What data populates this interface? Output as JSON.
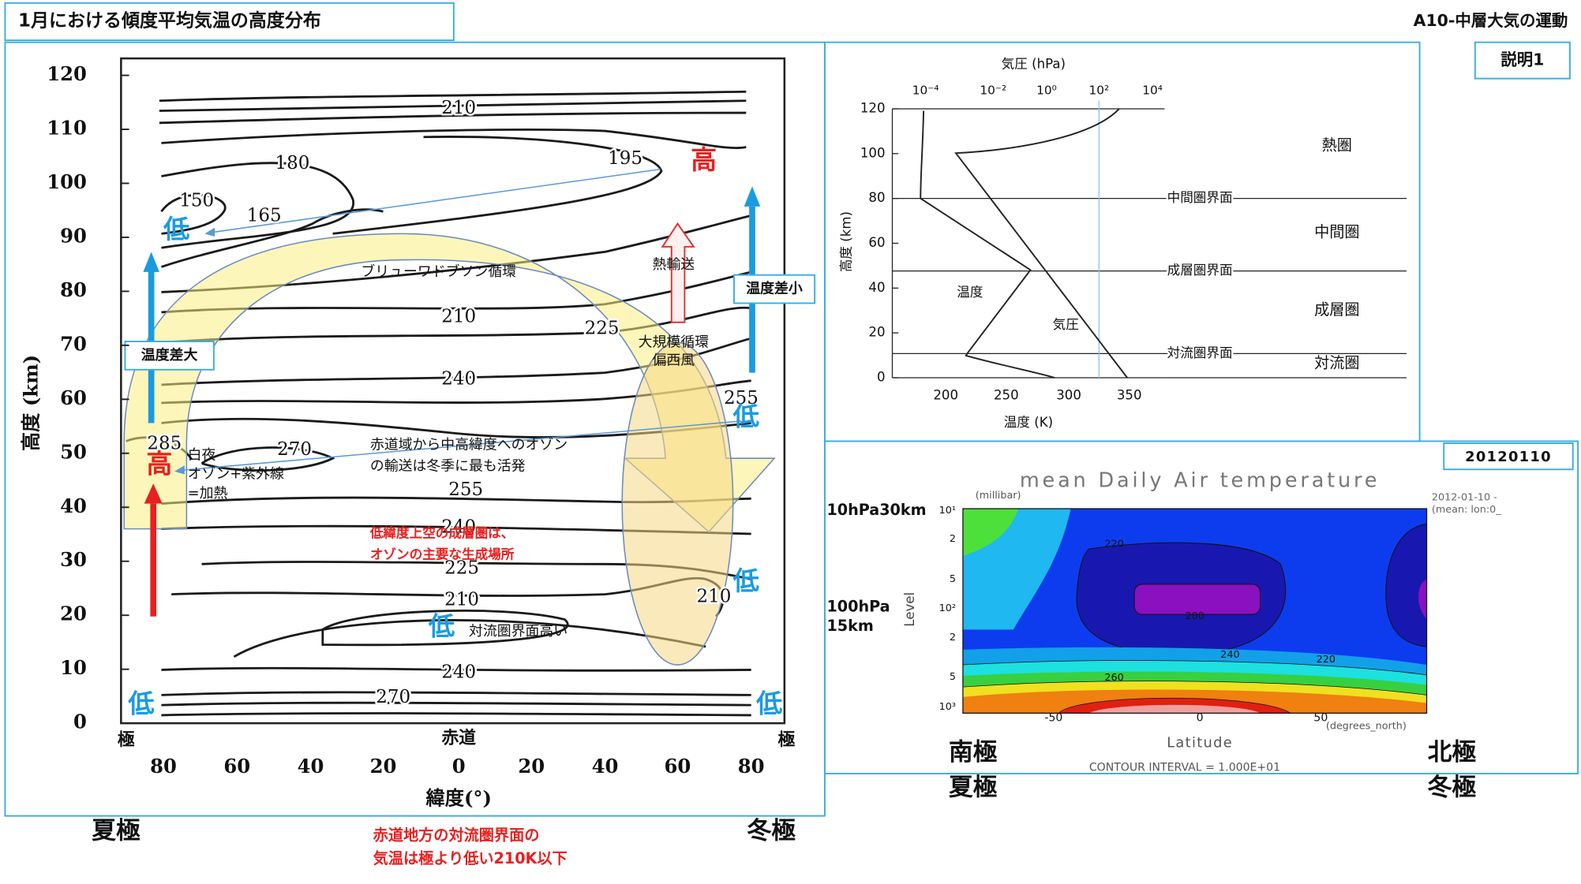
{
  "header": {
    "title": "1月における傾度平均気温の高度分布",
    "course": "A10-中層大気の運動",
    "badge": "説明1"
  },
  "left_chart": {
    "y_axis_label": "高度 (km)",
    "y_ticks": [
      0,
      10,
      20,
      30,
      40,
      50,
      60,
      70,
      80,
      90,
      100,
      110,
      120
    ],
    "x_axis_label": "緯度(°)",
    "x_ticks": [
      80,
      60,
      40,
      20,
      0,
      20,
      40,
      60,
      80
    ],
    "pole_left": "極",
    "equator": "赤道",
    "pole_right": "極",
    "contour_labels": [
      210,
      180,
      195,
      150,
      165,
      210,
      225,
      240,
      255,
      270,
      285,
      255,
      240,
      225,
      210,
      210,
      240,
      270
    ],
    "markers": [
      "高",
      "低",
      "低",
      "高",
      "低",
      "低",
      "低",
      "低"
    ],
    "annotations": {
      "brewer_dobson": "ブリューワドブソン循環",
      "heat_transport": "熱輸送",
      "small_diff": "温度差小",
      "large_diff": "温度差大",
      "large_scale": [
        "大規模循環",
        "偏西風"
      ],
      "polar_day": [
        "白夜",
        "オゾン+紫外線",
        "=加熱"
      ],
      "ozone_transport": [
        "赤道域から中高緯度へのオゾン",
        "の輸送は冬季に最も活発"
      ],
      "ozone_source": [
        "低緯度上空の成層圏は、",
        "オゾンの主要な生成場所"
      ],
      "tropopause_high": "対流圏界面高い"
    }
  },
  "footer": {
    "summer_pole": "夏極",
    "winter_pole": "冬極",
    "note": [
      "赤道地方の対流圏界面の",
      "気温は極より低い210K以下"
    ]
  },
  "profile_chart": {
    "pressure_label": "気圧 (hPa)",
    "pressure_ticks": [
      "10⁻⁴",
      "10⁻²",
      "10⁰",
      "10²",
      "10⁴"
    ],
    "y_axis_label": "高度 (km)",
    "y_ticks": [
      0,
      20,
      40,
      60,
      80,
      100,
      120
    ],
    "x_axis_label": "温度 (K)",
    "x_ticks": [
      200,
      250,
      300,
      350
    ],
    "boundaries": [
      "中間圏界面",
      "成層圏界面",
      "対流圏界面"
    ],
    "layers": [
      "熱圏",
      "中間圏",
      "成層圏",
      "対流圏"
    ],
    "curve_labels": [
      "温度",
      "気圧"
    ]
  },
  "daily_chart": {
    "date": "20120110",
    "title": "mean Daily Air temperature",
    "unit": "(millibar)",
    "levels": [
      "10¹",
      "2",
      "5",
      "10²",
      "2",
      "5",
      "10³"
    ],
    "level_label": "Level",
    "lat_ticks": [
      "-50",
      "0",
      "50"
    ],
    "lat_unit": "(degrees_north)",
    "lat_label": "Latitude",
    "interval": "CONTOUR INTERVAL = 1.000E+01",
    "meta": [
      "2012-01-10 -",
      "(mean: lon:0_"
    ],
    "contour_labels": [
      "220",
      "200",
      "240",
      "220",
      "260"
    ],
    "side_labels": [
      "10hPa30km",
      "100hPa",
      "15km"
    ],
    "poles": [
      "南極",
      "夏極",
      "北極",
      "冬極"
    ]
  }
}
